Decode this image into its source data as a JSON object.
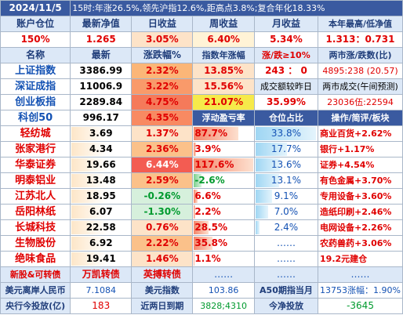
{
  "header": {
    "date": "2024/11/5",
    "summary": "15时:年涨26.5%,领先沪指12.6%,距高点3.8%;复合年化18.33%"
  },
  "summary_table": {
    "headers": [
      "账户仓位",
      "最新净值",
      "日收益",
      "周收益",
      "月收益",
      "本年最高/低净值"
    ],
    "values": [
      "150%",
      "1.265",
      "3.05%",
      "6.40%",
      "5.34%",
      "1.313：0.731"
    ]
  },
  "index_table": {
    "headers": [
      "名称",
      "最新",
      "涨跌幅%",
      "指数年涨幅",
      "涨/跌≥10%",
      "两市涨/跌数(比)"
    ],
    "rows": [
      {
        "name": "上证指数",
        "price": "3386.99",
        "change": "2.32%",
        "year": "13.85%",
        "col5": "243 ： 0",
        "col6": "4895:238 (20.57)"
      },
      {
        "name": "深证成指",
        "price": "11006.9",
        "change": "3.22%",
        "year": "15.56%",
        "col5": "成交额较昨日",
        "col6": "两市成交(午间预测)"
      },
      {
        "name": "创业板指",
        "price": "2289.84",
        "change": "4.75%",
        "year": "21.07%",
        "col5": "35.99%",
        "col6": "23036伍:22594"
      },
      {
        "name": "科创50",
        "price": "996.17",
        "change": "4.35%",
        "year": "浮动盈亏率",
        "col5": "仓位占比",
        "col6": "操作/简评/板块"
      }
    ]
  },
  "holdings": [
    {
      "name": "轻纺城",
      "price": "3.69",
      "change": "1.37%",
      "change_pct": 1.37,
      "pnl": "87.7%",
      "pnl_pct": 87.7,
      "weight": "33.8%",
      "weight_pct": 33.8,
      "note": "商业百货+2.62%"
    },
    {
      "name": "张家港行",
      "price": "4.34",
      "change": "2.36%",
      "change_pct": 2.36,
      "pnl": "3.9%",
      "pnl_pct": 3.9,
      "weight": "17.7%",
      "weight_pct": 17.7,
      "note": "银行+1.17%"
    },
    {
      "name": "华泰证券",
      "price": "19.66",
      "change": "6.44%",
      "change_pct": 6.44,
      "pnl": "117.6%",
      "pnl_pct": 117.6,
      "weight": "13.6%",
      "weight_pct": 13.6,
      "note": "证券+4.54%"
    },
    {
      "name": "明泰铝业",
      "price": "13.48",
      "change": "2.59%",
      "change_pct": 2.59,
      "pnl": "-2.6%",
      "pnl_pct": -2.6,
      "weight": "13.1%",
      "weight_pct": 13.1,
      "note": "有色金属+3.70%"
    },
    {
      "name": "江苏北人",
      "price": "18.95",
      "change": "-0.26%",
      "change_pct": -0.26,
      "pnl": "6.6%",
      "pnl_pct": 6.6,
      "weight": "9.1%",
      "weight_pct": 9.1,
      "note": "专用设备+3.60%"
    },
    {
      "name": "岳阳林纸",
      "price": "6.07",
      "change": "-1.30%",
      "change_pct": -1.3,
      "pnl": "2.2%",
      "pnl_pct": 2.2,
      "weight": "7.0%",
      "weight_pct": 7.0,
      "note": "造纸印刷+2.46%"
    },
    {
      "name": "长城科技",
      "price": "22.58",
      "change": "0.76%",
      "change_pct": 0.76,
      "pnl": "28.5%",
      "pnl_pct": 28.5,
      "weight": "2.4%",
      "weight_pct": 2.4,
      "note": "电网设备+2.26%"
    },
    {
      "name": "生物股份",
      "price": "6.92",
      "change": "2.22%",
      "change_pct": 2.22,
      "pnl": "35.8%",
      "pnl_pct": 35.8,
      "weight": "……",
      "weight_pct": 0,
      "note": "农药兽药+3.06%"
    },
    {
      "name": "绝味食品",
      "price": "19.41",
      "change": "1.46%",
      "change_pct": 1.46,
      "pnl": "1.1%",
      "pnl_pct": 1.1,
      "weight": "……",
      "weight_pct": 0,
      "note": "19.2元建仓"
    }
  ],
  "extra_row": {
    "c1": "新股&可转债",
    "c2": "万凯转债",
    "c3": "英搏转债",
    "c4": "……",
    "c5": "……",
    "c6": "……"
  },
  "footer1": {
    "l1": "美元离岸人民币",
    "v1": "7.1084",
    "l2": "美元指数",
    "v2": "103.86",
    "l3": "A50期指当月",
    "v3": "13753涨幅：1.90%"
  },
  "footer2": {
    "l1": "央行今投放(亿)",
    "v1": "183",
    "l2": "近两日到期",
    "v2": "3828;4310",
    "l3": "今净投放",
    "v3": "-3645"
  },
  "colors": {
    "header_bg": "#3a5aa0",
    "label_bg": "#dce8f7",
    "red": "#e00000",
    "green": "#009a2e",
    "blue": "#1452b4"
  }
}
